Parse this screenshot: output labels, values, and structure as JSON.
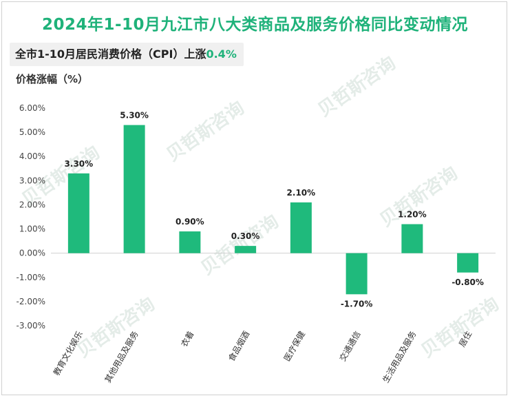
{
  "title": "2024年1-10月九江市八大类商品及服务价格同比变动情况",
  "subtitle": {
    "prefix": "全市1-10月居民消费价格（CPI）上涨",
    "value": "0.4%"
  },
  "colors": {
    "accent": "#1fb27a",
    "bar": "#1fba7c"
  },
  "watermark": "贝哲斯咨询",
  "chart_data": {
    "type": "bar",
    "ylabel": "价格涨幅（%）",
    "ylim": [
      -3,
      6
    ],
    "yticks": [
      6,
      5,
      4,
      3,
      2,
      1,
      0,
      -1,
      -2,
      -3
    ],
    "ytick_labels": [
      "6.00%",
      "5.00%",
      "4.00%",
      "3.00%",
      "2.00%",
      "1.00%",
      "0.00%",
      "-1.00%",
      "-2.00%",
      "-3.00%"
    ],
    "categories": [
      "教育文化娱乐",
      "其他用品及服务",
      "衣着",
      "食品烟酒",
      "医疗保健",
      "交通通信",
      "生活用品及服务",
      "居住"
    ],
    "values": [
      3.3,
      5.3,
      0.9,
      0.3,
      2.1,
      -1.7,
      1.2,
      -0.8
    ],
    "data_labels": [
      "3.30%",
      "5.30%",
      "0.90%",
      "0.30%",
      "2.10%",
      "-1.70%",
      "1.20%",
      "-0.80%"
    ],
    "grid": false,
    "legend": "none"
  }
}
